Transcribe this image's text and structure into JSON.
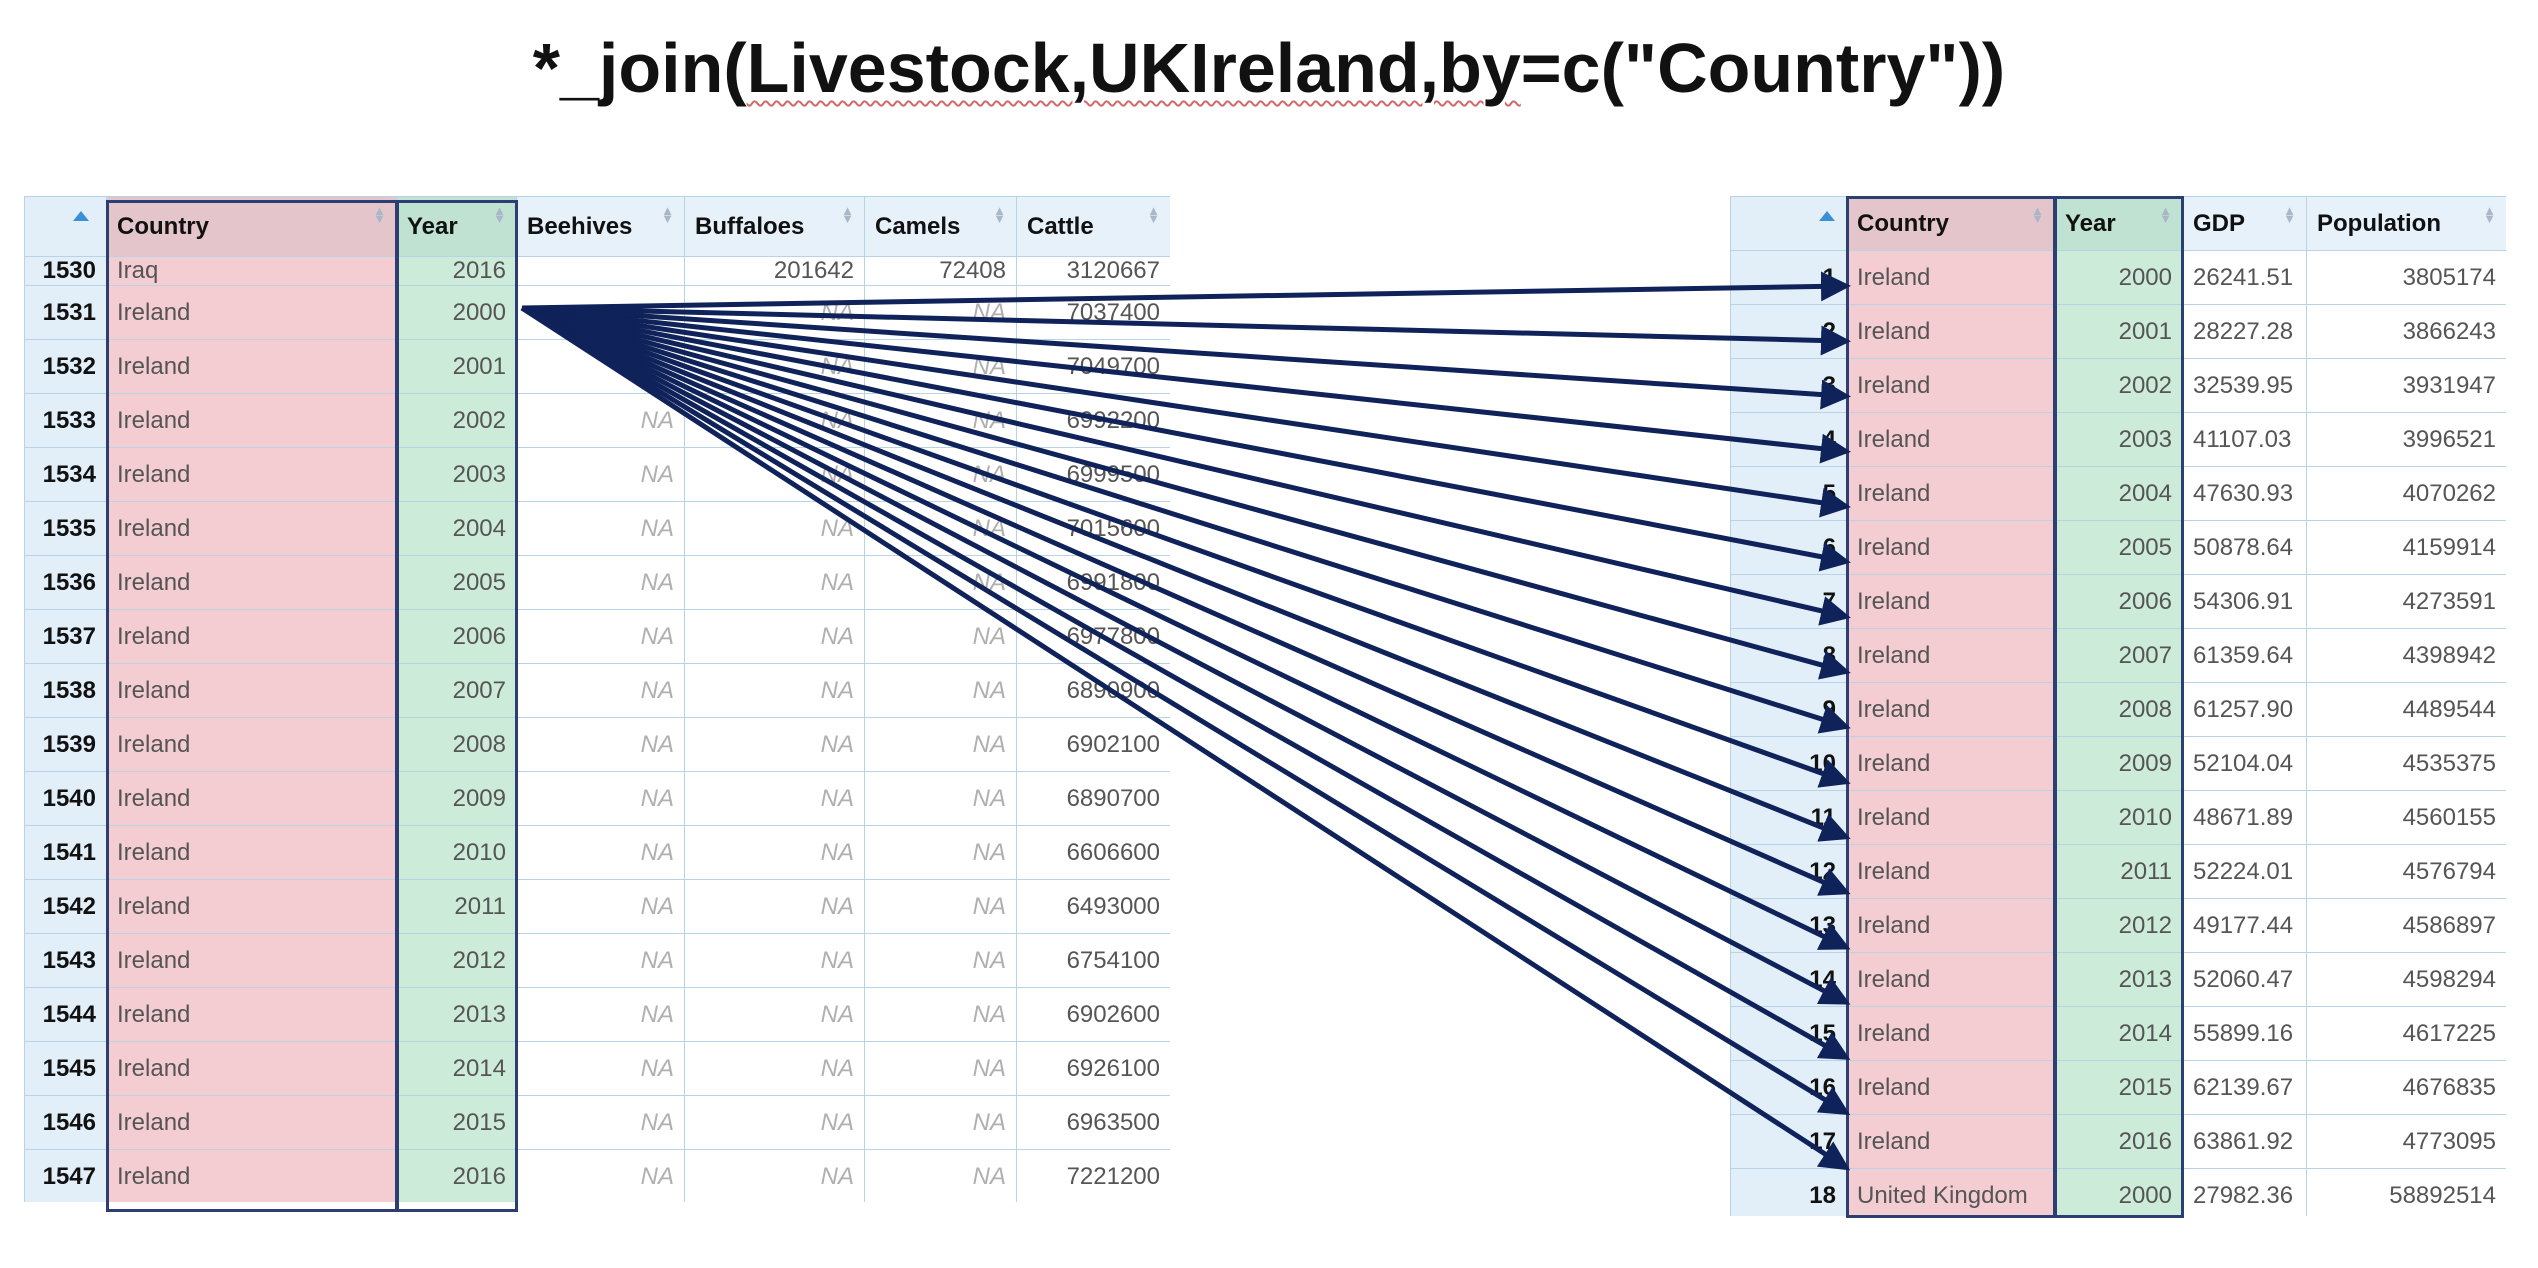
{
  "title": "*_join(Livestock,UKIreland,by=c(\"Country\"))",
  "title_parts": {
    "prefix": "*_join(",
    "squiggly": "Livestock,UKIreland,by",
    "suffix": "=c(\"Country\"))"
  },
  "left_table": {
    "columns": [
      "Country",
      "Year",
      "Beehives",
      "Buffaloes",
      "Camels",
      "Cattle"
    ],
    "partial_top_row": {
      "rownum": "1530",
      "country": "Iraq",
      "year": "2016",
      "beehives": "",
      "buffaloes": "201642",
      "camels": "72408",
      "cattle": "3120667"
    },
    "rows": [
      {
        "rownum": "1531",
        "country": "Ireland",
        "year": "2000",
        "beehives": "",
        "buffaloes": "NA",
        "camels": "NA",
        "cattle": "7037400"
      },
      {
        "rownum": "1532",
        "country": "Ireland",
        "year": "2001",
        "beehives": "",
        "buffaloes": "NA",
        "camels": "NA",
        "cattle": "7049700"
      },
      {
        "rownum": "1533",
        "country": "Ireland",
        "year": "2002",
        "beehives": "NA",
        "buffaloes": "NA",
        "camels": "NA",
        "cattle": "6992200"
      },
      {
        "rownum": "1534",
        "country": "Ireland",
        "year": "2003",
        "beehives": "NA",
        "buffaloes": "NA",
        "camels": "NA",
        "cattle": "6999500"
      },
      {
        "rownum": "1535",
        "country": "Ireland",
        "year": "2004",
        "beehives": "NA",
        "buffaloes": "NA",
        "camels": "NA",
        "cattle": "7015600"
      },
      {
        "rownum": "1536",
        "country": "Ireland",
        "year": "2005",
        "beehives": "NA",
        "buffaloes": "NA",
        "camels": "NA",
        "cattle": "6991800"
      },
      {
        "rownum": "1537",
        "country": "Ireland",
        "year": "2006",
        "beehives": "NA",
        "buffaloes": "NA",
        "camels": "NA",
        "cattle": "6977800"
      },
      {
        "rownum": "1538",
        "country": "Ireland",
        "year": "2007",
        "beehives": "NA",
        "buffaloes": "NA",
        "camels": "NA",
        "cattle": "6890900"
      },
      {
        "rownum": "1539",
        "country": "Ireland",
        "year": "2008",
        "beehives": "NA",
        "buffaloes": "NA",
        "camels": "NA",
        "cattle": "6902100"
      },
      {
        "rownum": "1540",
        "country": "Ireland",
        "year": "2009",
        "beehives": "NA",
        "buffaloes": "NA",
        "camels": "NA",
        "cattle": "6890700"
      },
      {
        "rownum": "1541",
        "country": "Ireland",
        "year": "2010",
        "beehives": "NA",
        "buffaloes": "NA",
        "camels": "NA",
        "cattle": "6606600"
      },
      {
        "rownum": "1542",
        "country": "Ireland",
        "year": "2011",
        "beehives": "NA",
        "buffaloes": "NA",
        "camels": "NA",
        "cattle": "6493000"
      },
      {
        "rownum": "1543",
        "country": "Ireland",
        "year": "2012",
        "beehives": "NA",
        "buffaloes": "NA",
        "camels": "NA",
        "cattle": "6754100"
      },
      {
        "rownum": "1544",
        "country": "Ireland",
        "year": "2013",
        "beehives": "NA",
        "buffaloes": "NA",
        "camels": "NA",
        "cattle": "6902600"
      },
      {
        "rownum": "1545",
        "country": "Ireland",
        "year": "2014",
        "beehives": "NA",
        "buffaloes": "NA",
        "camels": "NA",
        "cattle": "6926100"
      },
      {
        "rownum": "1546",
        "country": "Ireland",
        "year": "2015",
        "beehives": "NA",
        "buffaloes": "NA",
        "camels": "NA",
        "cattle": "6963500"
      },
      {
        "rownum": "1547",
        "country": "Ireland",
        "year": "2016",
        "beehives": "NA",
        "buffaloes": "NA",
        "camels": "NA",
        "cattle": "7221200"
      }
    ]
  },
  "right_table": {
    "columns": [
      "Country",
      "Year",
      "GDP",
      "Population"
    ],
    "rows": [
      {
        "rownum": "1",
        "country": "Ireland",
        "year": "2000",
        "gdp": "26241.51",
        "population": "3805174"
      },
      {
        "rownum": "2",
        "country": "Ireland",
        "year": "2001",
        "gdp": "28227.28",
        "population": "3866243"
      },
      {
        "rownum": "3",
        "country": "Ireland",
        "year": "2002",
        "gdp": "32539.95",
        "population": "3931947"
      },
      {
        "rownum": "4",
        "country": "Ireland",
        "year": "2003",
        "gdp": "41107.03",
        "population": "3996521"
      },
      {
        "rownum": "5",
        "country": "Ireland",
        "year": "2004",
        "gdp": "47630.93",
        "population": "4070262"
      },
      {
        "rownum": "6",
        "country": "Ireland",
        "year": "2005",
        "gdp": "50878.64",
        "population": "4159914"
      },
      {
        "rownum": "7",
        "country": "Ireland",
        "year": "2006",
        "gdp": "54306.91",
        "population": "4273591"
      },
      {
        "rownum": "8",
        "country": "Ireland",
        "year": "2007",
        "gdp": "61359.64",
        "population": "4398942"
      },
      {
        "rownum": "9",
        "country": "Ireland",
        "year": "2008",
        "gdp": "61257.90",
        "population": "4489544"
      },
      {
        "rownum": "10",
        "country": "Ireland",
        "year": "2009",
        "gdp": "52104.04",
        "population": "4535375"
      },
      {
        "rownum": "11",
        "country": "Ireland",
        "year": "2010",
        "gdp": "48671.89",
        "population": "4560155"
      },
      {
        "rownum": "12",
        "country": "Ireland",
        "year": "2011",
        "gdp": "52224.01",
        "population": "4576794"
      },
      {
        "rownum": "13",
        "country": "Ireland",
        "year": "2012",
        "gdp": "49177.44",
        "population": "4586897"
      },
      {
        "rownum": "14",
        "country": "Ireland",
        "year": "2013",
        "gdp": "52060.47",
        "population": "4598294"
      },
      {
        "rownum": "15",
        "country": "Ireland",
        "year": "2014",
        "gdp": "55899.16",
        "population": "4617225"
      },
      {
        "rownum": "16",
        "country": "Ireland",
        "year": "2015",
        "gdp": "62139.67",
        "population": "4676835"
      },
      {
        "rownum": "17",
        "country": "Ireland",
        "year": "2016",
        "gdp": "63861.92",
        "population": "4773095"
      }
    ],
    "partial_bottom_row": {
      "rownum": "18",
      "country": "United Kingdom",
      "year": "2000",
      "gdp": "27982.36",
      "population": "58892514"
    }
  },
  "colors": {
    "country_fill": "#f3cdd1",
    "year_fill": "#cdebd9",
    "header_fill": "#e7f1f9",
    "rownum_fill": "#e2eff8",
    "outline": "#2d3e73",
    "arrow": "#0f2259"
  },
  "annotation": {
    "arrow_source_row": "1531",
    "arrow_count": 17
  }
}
